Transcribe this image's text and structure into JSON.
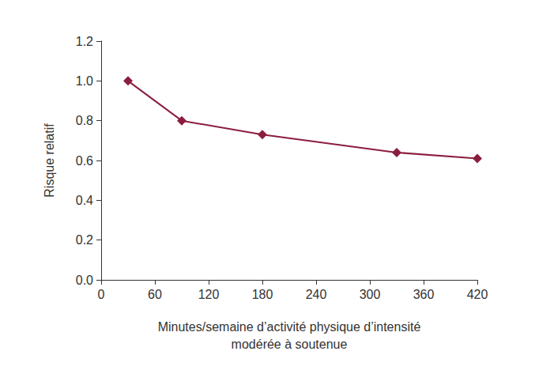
{
  "chart_data": {
    "type": "line",
    "xlabel": "Minutes/semaine d’activité physique d’intensité\nmodérée à soutenue",
    "ylabel": "Risque relatif",
    "x": [
      30,
      90,
      180,
      330,
      420
    ],
    "values": [
      1.0,
      0.8,
      0.73,
      0.64,
      0.61
    ],
    "color": "#8b1e3f",
    "marker": "diamond",
    "line_style": "solid",
    "xlim": [
      0,
      420
    ],
    "xticks": [
      0,
      60,
      120,
      180,
      240,
      300,
      360,
      420
    ],
    "ylim": [
      0,
      1.2
    ],
    "yticks": [
      {
        "value": 0,
        "label": "0.0"
      },
      0.2,
      0.4,
      0.6,
      0.8,
      {
        "value": 1,
        "label": "1.0"
      },
      1.2
    ],
    "grid": false
  }
}
